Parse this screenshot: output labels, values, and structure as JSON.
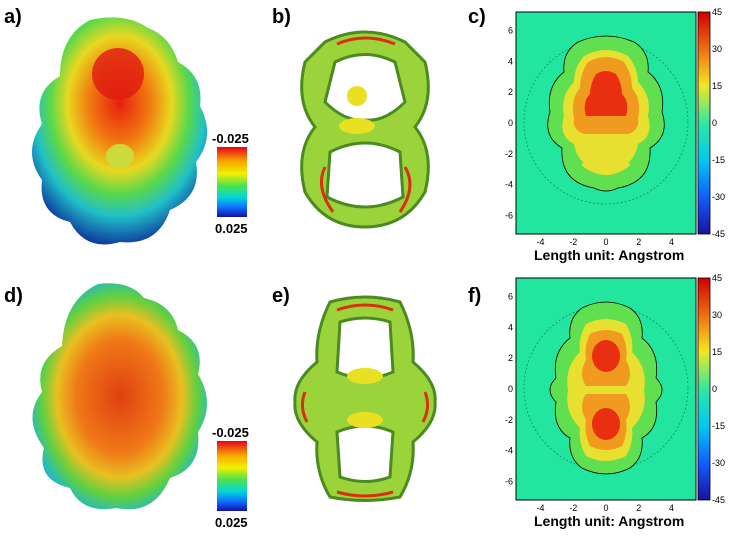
{
  "panels": {
    "a": {
      "label": "a)",
      "scale_top": "-0.025",
      "scale_bottom": "0.025"
    },
    "b": {
      "label": "b)"
    },
    "c": {
      "label": "c)",
      "xlabel": "Length unit: Angstrom"
    },
    "d": {
      "label": "d)",
      "scale_top": "-0.025",
      "scale_bottom": "0.025"
    },
    "e": {
      "label": "e)"
    },
    "f": {
      "label": "f)",
      "xlabel": "Length unit: Angstrom"
    }
  },
  "chart_data": [
    {
      "type": "heatmap",
      "panel": "c",
      "xlabel": "Length unit: Angstrom",
      "xticks": [
        -4,
        -2,
        0,
        2,
        4
      ],
      "yticks": [
        6,
        4,
        2,
        0,
        -2,
        -4,
        -6
      ],
      "xlim": [
        -5.5,
        5.5
      ],
      "ylim": [
        -7.2,
        7.2
      ],
      "colorbar_ticks": [
        45,
        30,
        15,
        0,
        -15,
        -30,
        -45
      ],
      "colorbar_range": [
        -45,
        45
      ]
    },
    {
      "type": "heatmap",
      "panel": "f",
      "xlabel": "Length unit: Angstrom",
      "xticks": [
        -4,
        -2,
        0,
        2,
        4
      ],
      "yticks": [
        6,
        4,
        2,
        0,
        -2,
        -4,
        -6
      ],
      "xlim": [
        -5.5,
        5.5
      ],
      "ylim": [
        -7.2,
        7.2
      ],
      "colorbar_ticks": [
        45,
        30,
        15,
        0,
        -15,
        -30,
        -45
      ],
      "colorbar_range": [
        -45,
        45
      ]
    }
  ]
}
